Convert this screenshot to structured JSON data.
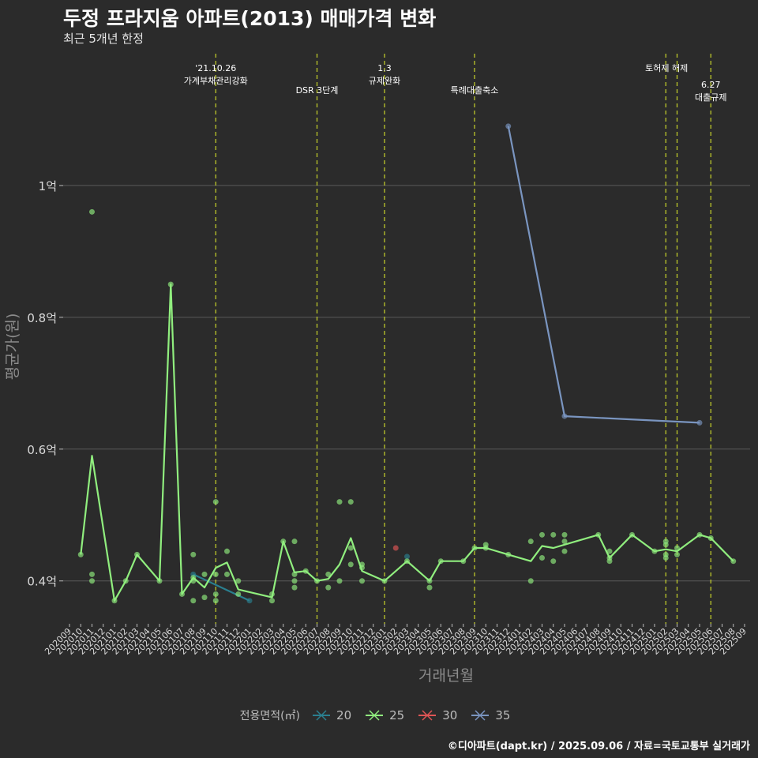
{
  "title": "두정 프라지움 아파트(2013) 매매가격 변화",
  "subtitle": "최근 5개년 한정",
  "caption": "©디아파트(dapt.kr) / 2025.09.06 / 자료=국토교통부 실거래가",
  "colors": {
    "background": "#2b2b2b",
    "grid": "#5a5a5a",
    "event_line": "#c8d42a",
    "s20": "#2a7f8f",
    "s25": "#90ee7e",
    "s30": "#e05555",
    "s35": "#7a95c0"
  },
  "chart_data": {
    "type": "line",
    "title": "두정 프라지움 아파트(2013) 매매가격 변화",
    "xlabel": "거래년월",
    "ylabel": "평균가(원)",
    "ylim": [
      0.335,
      1.2
    ],
    "yticks": [
      {
        "value": 0.4,
        "label": "0.4억"
      },
      {
        "value": 0.6,
        "label": "0.6억"
      },
      {
        "value": 0.8,
        "label": "0.8억"
      },
      {
        "value": 1.0,
        "label": "1억"
      }
    ],
    "xticks": [
      "202009",
      "202010",
      "202011",
      "202012",
      "202101",
      "202102",
      "202103",
      "202104",
      "202105",
      "202106",
      "202107",
      "202108",
      "202109",
      "202110",
      "202111",
      "202112",
      "202201",
      "202202",
      "202203",
      "202204",
      "202205",
      "202206",
      "202207",
      "202208",
      "202209",
      "202210",
      "202211",
      "202212",
      "202301",
      "202302",
      "202303",
      "202304",
      "202305",
      "202306",
      "202307",
      "202308",
      "202309",
      "202310",
      "202311",
      "202312",
      "202401",
      "202402",
      "202403",
      "202404",
      "202405",
      "202406",
      "202407",
      "202408",
      "202409",
      "202410",
      "202411",
      "202412",
      "202501",
      "202502",
      "202503",
      "202504",
      "202505",
      "202506",
      "202507",
      "202508",
      "202509"
    ],
    "events": [
      {
        "month": "202110",
        "label": "'21.10.26\n가계부채관리강화",
        "row": 0
      },
      {
        "month": "202207",
        "label": "DSR 3단계",
        "row": 1
      },
      {
        "month": "202301",
        "label": "1.3\n규제완화",
        "row": 0
      },
      {
        "month": "202309",
        "label": "특례대출축소",
        "row": 1
      },
      {
        "month": "202502",
        "label": "토허제 해제",
        "row": 0,
        "align": "end"
      },
      {
        "month": "202503",
        "label": "",
        "row": 0
      },
      {
        "month": "202506",
        "label": "6.27\n대출규제",
        "row": 2
      }
    ],
    "legend_title": "전용면적(㎡)",
    "series": [
      {
        "name": "20",
        "color": "#2a7f8f",
        "line": [
          [
            "202108",
            0.41
          ],
          [
            "202201",
            0.37
          ]
        ],
        "points": [
          [
            "202108",
            0.41
          ],
          [
            "202201",
            0.37
          ],
          [
            "202303",
            0.437
          ]
        ]
      },
      {
        "name": "25",
        "color": "#90ee7e",
        "line": [
          [
            "202010",
            0.44
          ],
          [
            "202011",
            0.59
          ],
          [
            "202101",
            0.37
          ],
          [
            "202102",
            0.4
          ],
          [
            "202103",
            0.44
          ],
          [
            "202105",
            0.4
          ],
          [
            "202106",
            0.85
          ],
          [
            "202107",
            0.38
          ],
          [
            "202108",
            0.405
          ],
          [
            "202109",
            0.39
          ],
          [
            "202110",
            0.42
          ],
          [
            "202111",
            0.428
          ],
          [
            "202112",
            0.387
          ],
          [
            "202203",
            0.375
          ],
          [
            "202204",
            0.46
          ],
          [
            "202205",
            0.413
          ],
          [
            "202206",
            0.415
          ],
          [
            "202207",
            0.4
          ],
          [
            "202208",
            0.403
          ],
          [
            "202209",
            0.425
          ],
          [
            "202210",
            0.465
          ],
          [
            "202211",
            0.415
          ],
          [
            "202301",
            0.4
          ],
          [
            "202303",
            0.43
          ],
          [
            "202305",
            0.4
          ],
          [
            "202306",
            0.43
          ],
          [
            "202308",
            0.43
          ],
          [
            "202309",
            0.45
          ],
          [
            "202310",
            0.45
          ],
          [
            "202312",
            0.44
          ],
          [
            "202402",
            0.43
          ],
          [
            "202403",
            0.453
          ],
          [
            "202404",
            0.45
          ],
          [
            "202405",
            0.455
          ],
          [
            "202408",
            0.47
          ],
          [
            "202409",
            0.435
          ],
          [
            "202411",
            0.47
          ],
          [
            "202501",
            0.445
          ],
          [
            "202502",
            0.448
          ],
          [
            "202503",
            0.445
          ],
          [
            "202505",
            0.47
          ],
          [
            "202506",
            0.465
          ],
          [
            "202508",
            0.43
          ]
        ],
        "points": [
          [
            "202010",
            0.44
          ],
          [
            "202011",
            0.96
          ],
          [
            "202011",
            0.41
          ],
          [
            "202011",
            0.4
          ],
          [
            "202101",
            0.37
          ],
          [
            "202102",
            0.4
          ],
          [
            "202103",
            0.44
          ],
          [
            "202105",
            0.4
          ],
          [
            "202106",
            0.85
          ],
          [
            "202107",
            0.38
          ],
          [
            "202108",
            0.44
          ],
          [
            "202108",
            0.405
          ],
          [
            "202108",
            0.4
          ],
          [
            "202108",
            0.37
          ],
          [
            "202109",
            0.41
          ],
          [
            "202109",
            0.375
          ],
          [
            "202110",
            0.52
          ],
          [
            "202110",
            0.41
          ],
          [
            "202110",
            0.38
          ],
          [
            "202110",
            0.37
          ],
          [
            "202111",
            0.445
          ],
          [
            "202111",
            0.41
          ],
          [
            "202112",
            0.4
          ],
          [
            "202112",
            0.38
          ],
          [
            "202203",
            0.38
          ],
          [
            "202203",
            0.37
          ],
          [
            "202204",
            0.46
          ],
          [
            "202205",
            0.46
          ],
          [
            "202205",
            0.41
          ],
          [
            "202205",
            0.4
          ],
          [
            "202205",
            0.39
          ],
          [
            "202206",
            0.415
          ],
          [
            "202207",
            0.4
          ],
          [
            "202208",
            0.41
          ],
          [
            "202208",
            0.39
          ],
          [
            "202209",
            0.52
          ],
          [
            "202209",
            0.4
          ],
          [
            "202210",
            0.52
          ],
          [
            "202210",
            0.45
          ],
          [
            "202210",
            0.425
          ],
          [
            "202211",
            0.425
          ],
          [
            "202211",
            0.42
          ],
          [
            "202211",
            0.4
          ],
          [
            "202301",
            0.4
          ],
          [
            "202303",
            0.43
          ],
          [
            "202305",
            0.4
          ],
          [
            "202305",
            0.39
          ],
          [
            "202306",
            0.43
          ],
          [
            "202308",
            0.43
          ],
          [
            "202309",
            0.45
          ],
          [
            "202310",
            0.45
          ],
          [
            "202310",
            0.455
          ],
          [
            "202312",
            0.44
          ],
          [
            "202402",
            0.46
          ],
          [
            "202402",
            0.4
          ],
          [
            "202403",
            0.47
          ],
          [
            "202403",
            0.435
          ],
          [
            "202404",
            0.47
          ],
          [
            "202404",
            0.43
          ],
          [
            "202405",
            0.47
          ],
          [
            "202405",
            0.46
          ],
          [
            "202405",
            0.445
          ],
          [
            "202408",
            0.47
          ],
          [
            "202409",
            0.445
          ],
          [
            "202409",
            0.435
          ],
          [
            "202409",
            0.43
          ],
          [
            "202411",
            0.47
          ],
          [
            "202501",
            0.445
          ],
          [
            "202502",
            0.46
          ],
          [
            "202502",
            0.455
          ],
          [
            "202502",
            0.44
          ],
          [
            "202502",
            0.435
          ],
          [
            "202503",
            0.45
          ],
          [
            "202503",
            0.44
          ],
          [
            "202505",
            0.47
          ],
          [
            "202506",
            0.465
          ],
          [
            "202508",
            0.43
          ]
        ]
      },
      {
        "name": "30",
        "color": "#e05555",
        "line": [],
        "points": [
          [
            "202302",
            0.45
          ]
        ]
      },
      {
        "name": "35",
        "color": "#7a95c0",
        "line": [
          [
            "202312",
            1.09
          ],
          [
            "202405",
            0.65
          ],
          [
            "202505",
            0.64
          ]
        ],
        "points": [
          [
            "202312",
            1.09
          ],
          [
            "202405",
            0.65
          ],
          [
            "202505",
            0.64
          ]
        ]
      }
    ]
  }
}
